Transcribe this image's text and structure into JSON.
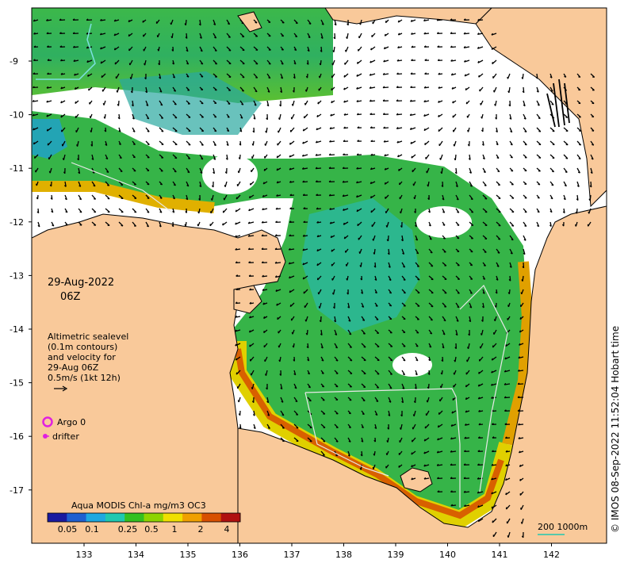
{
  "map": {
    "date_label": "29-Aug-2022",
    "time_label": "06Z",
    "legend_lines": [
      "Altimetric sealevel",
      "(0.1m contours)",
      "and velocity for",
      "29-Aug 06Z",
      "0.5m/s (1kt 12h)"
    ],
    "argo_label": "Argo 0",
    "drifter_label": "drifter",
    "colorbar_title": "Aqua MODIS Chl-a mg/m3 OC3",
    "colorbar_ticks": [
      "0.05",
      "0.1",
      "0.25",
      "0.5",
      "1",
      "2",
      "4"
    ],
    "colorbar_colors": [
      "#1a1aa0",
      "#1f5fd0",
      "#1fa8e0",
      "#20c8b0",
      "#34c020",
      "#8ed400",
      "#f0e000",
      "#f0a000",
      "#d85000",
      "#b01010"
    ],
    "scale_label": "200  1000m",
    "credit": "© IMOS 08-Sep-2022 11:52:04 Hobart time",
    "lat_ticks": [
      "9",
      "10",
      "11",
      "12",
      "13",
      "14",
      "15",
      "16",
      "17"
    ],
    "lon_ticks": [
      "133",
      "134",
      "135",
      "136",
      "137",
      "138",
      "139",
      "140",
      "141",
      "142"
    ],
    "colors": {
      "land": "#f9c99a",
      "argo": "#e020e0",
      "drifter": "#e020e0",
      "scale_bar": "#20c8b0"
    }
  }
}
